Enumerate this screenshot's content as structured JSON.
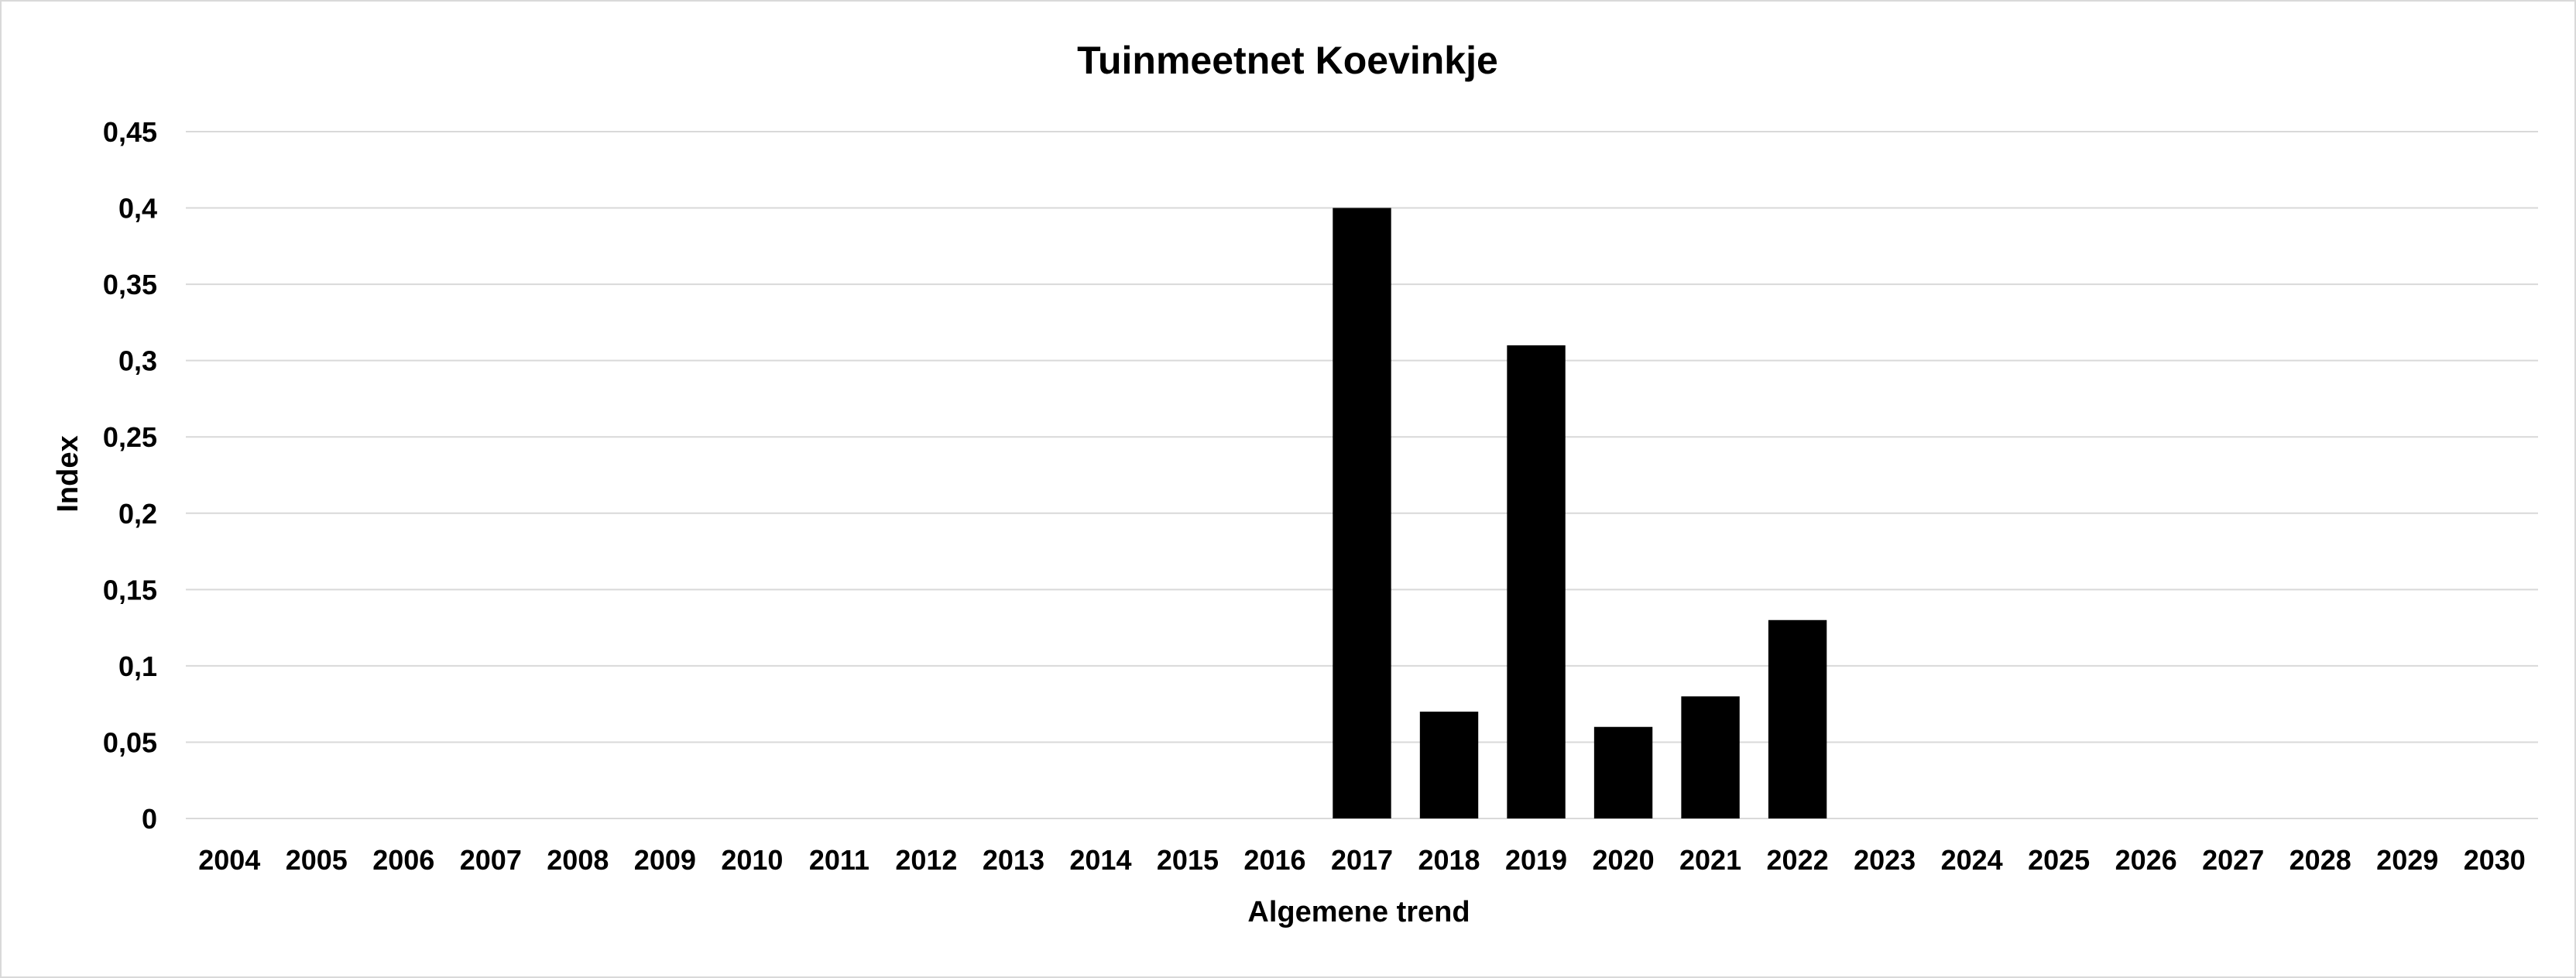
{
  "chart_data": {
    "type": "bar",
    "title": "Tuinmeetnet Koevinkje",
    "xlabel": "Algemene trend",
    "ylabel": "Index",
    "categories": [
      "2004",
      "2005",
      "2006",
      "2007",
      "2008",
      "2009",
      "2010",
      "2011",
      "2012",
      "2013",
      "2014",
      "2015",
      "2016",
      "2017",
      "2018",
      "2019",
      "2020",
      "2021",
      "2022",
      "2023",
      "2024",
      "2025",
      "2026",
      "2027",
      "2028",
      "2029",
      "2030"
    ],
    "values": [
      null,
      null,
      null,
      null,
      null,
      null,
      null,
      null,
      null,
      null,
      null,
      null,
      null,
      0.4,
      0.07,
      0.31,
      0.06,
      0.08,
      0.13,
      null,
      null,
      null,
      null,
      null,
      null,
      null,
      null
    ],
    "ylim": [
      0,
      0.45
    ],
    "yticks": [
      "0",
      "0,05",
      "0,1",
      "0,15",
      "0,2",
      "0,25",
      "0,3",
      "0,35",
      "0,4",
      "0,45"
    ],
    "grid": true,
    "legend": "none",
    "bar_color": "#000000",
    "grid_color": "#d9d9d9"
  }
}
